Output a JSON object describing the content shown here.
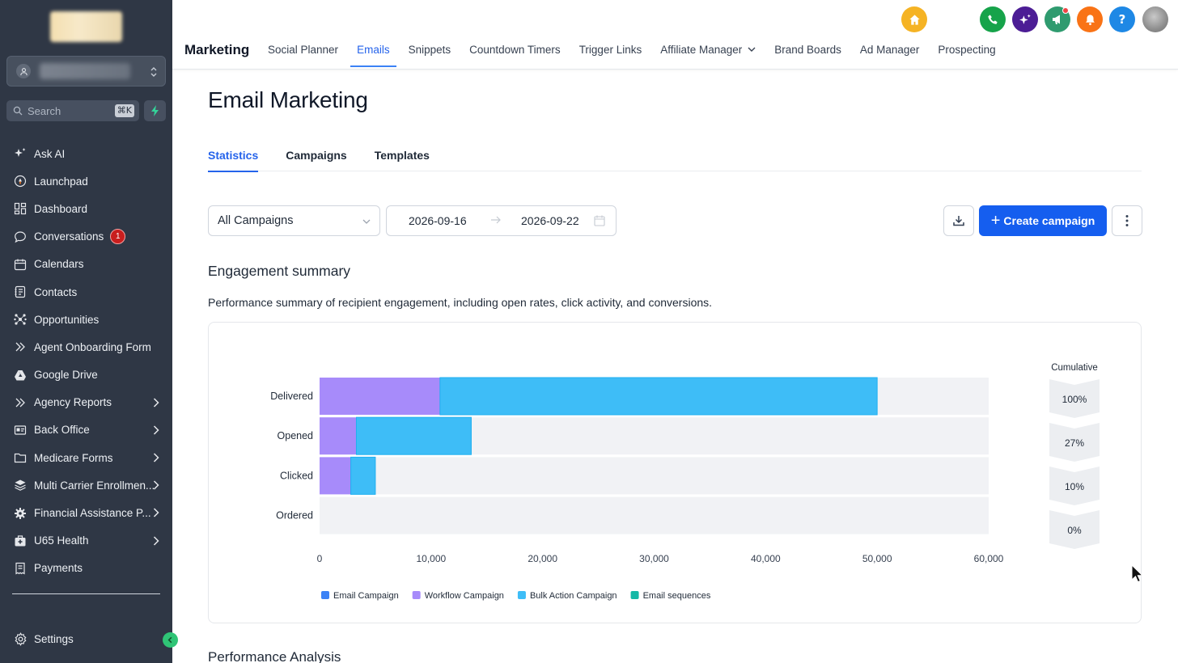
{
  "sidebar": {
    "search_placeholder": "Search",
    "search_shortcut": "⌘K",
    "items": [
      {
        "label": "Ask AI",
        "icon": "sparkles-icon"
      },
      {
        "label": "Launchpad",
        "icon": "rocket-icon"
      },
      {
        "label": "Dashboard",
        "icon": "dashboard-icon"
      },
      {
        "label": "Conversations",
        "icon": "chat-icon",
        "badge": "1"
      },
      {
        "label": "Calendars",
        "icon": "calendar-icon"
      },
      {
        "label": "Contacts",
        "icon": "contacts-icon"
      },
      {
        "label": "Opportunities",
        "icon": "opportunities-icon"
      },
      {
        "label": "Agent Onboarding Form",
        "icon": "double-chevron-icon"
      },
      {
        "label": "Google Drive",
        "icon": "drive-icon"
      },
      {
        "label": "Agency Reports",
        "icon": "double-chevron-icon",
        "expandable": true
      },
      {
        "label": "Back Office",
        "icon": "id-card-icon",
        "expandable": true
      },
      {
        "label": "Medicare Forms",
        "icon": "folder-icon",
        "expandable": true
      },
      {
        "label": "Multi Carrier Enrollmen...",
        "icon": "layers-icon",
        "expandable": true
      },
      {
        "label": "Financial Assistance P...",
        "icon": "gear-icon",
        "expandable": true
      },
      {
        "label": "U65 Health",
        "icon": "medical-bag-icon",
        "expandable": true
      },
      {
        "label": "Payments",
        "icon": "receipt-icon"
      }
    ],
    "settings_label": "Settings"
  },
  "topbar": {
    "section_title": "Marketing",
    "tabs": [
      {
        "label": "Social Planner"
      },
      {
        "label": "Emails",
        "active": true
      },
      {
        "label": "Snippets"
      },
      {
        "label": "Countdown Timers"
      },
      {
        "label": "Trigger Links"
      },
      {
        "label": "Affiliate Manager",
        "dropdown": true
      },
      {
        "label": "Brand Boards"
      },
      {
        "label": "Ad Manager"
      },
      {
        "label": "Prospecting"
      }
    ],
    "icons": [
      {
        "name": "home-icon",
        "color": "#f5b324"
      },
      {
        "name": "phone-icon",
        "color": "#16a34a"
      },
      {
        "name": "ai-sparkle-icon",
        "color": "#4c1d95"
      },
      {
        "name": "megaphone-icon",
        "color": "#2f9b6f"
      },
      {
        "name": "bell-icon",
        "color": "#f97316"
      },
      {
        "name": "help-icon",
        "color": "#1e88e5"
      }
    ]
  },
  "main": {
    "page_title": "Email Marketing",
    "tabs": [
      {
        "label": "Statistics",
        "active": true
      },
      {
        "label": "Campaigns"
      },
      {
        "label": "Templates"
      }
    ],
    "filter": {
      "campaign_select": "All Campaigns",
      "date_from": "2026-09-16",
      "date_to": "2026-09-22"
    },
    "create_button": "Create campaign",
    "engagement_title": "Engagement summary",
    "engagement_desc": "Performance summary of recipient engagement, including open rates, click activity, and conversions.",
    "performance_title": "Performance Analysis"
  },
  "chart_data": {
    "type": "bar",
    "orientation": "horizontal",
    "stacked": true,
    "categories": [
      "Delivered",
      "Opened",
      "Clicked",
      "Ordered"
    ],
    "series": [
      {
        "name": "Email Campaign",
        "color": "#3b82f6",
        "values": [
          0,
          0,
          0,
          0
        ]
      },
      {
        "name": "Workflow Campaign",
        "color": "#a78bfa",
        "values": [
          10800,
          3300,
          2800,
          0
        ]
      },
      {
        "name": "Bulk Action Campaign",
        "color": "#3ebdf7",
        "values": [
          39200,
          10300,
          2200,
          0
        ]
      },
      {
        "name": "Email sequences",
        "color": "#14b8a6",
        "values": [
          0,
          0,
          0,
          0
        ]
      }
    ],
    "xlim": [
      0,
      60000
    ],
    "xticks": [
      "0",
      "10,000",
      "20,000",
      "30,000",
      "40,000",
      "50,000",
      "60,000"
    ],
    "cumulative_title": "Cumulative",
    "cumulative": [
      "100%",
      "27%",
      "10%",
      "0%"
    ],
    "legend_position": "bottom-left",
    "track_color": "#f1f2f5"
  }
}
